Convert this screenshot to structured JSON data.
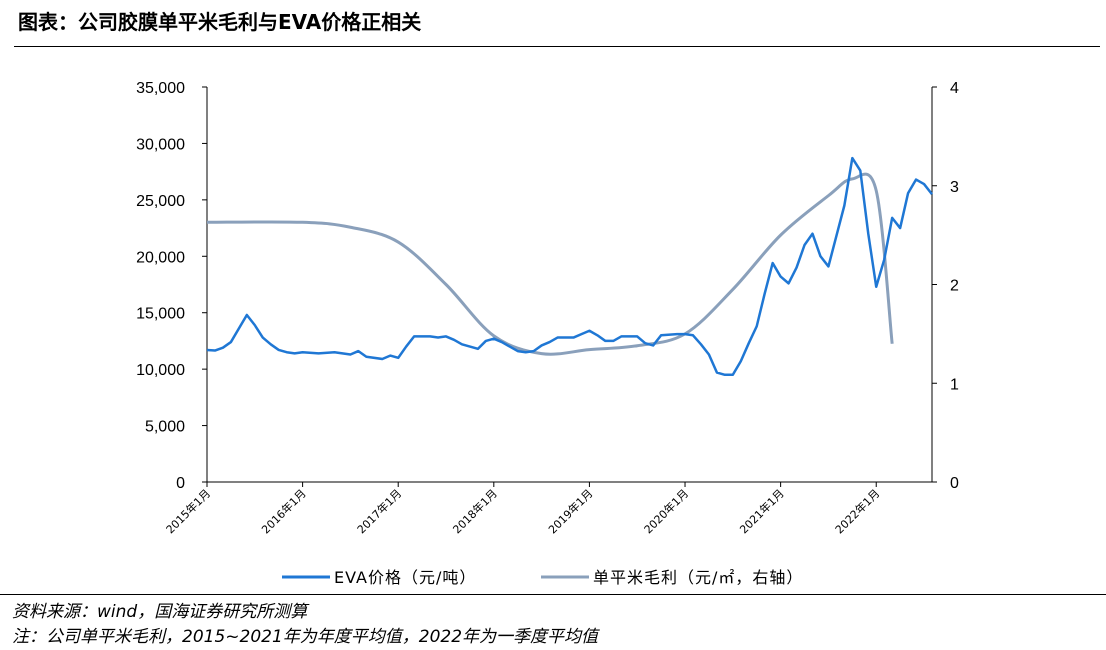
{
  "header": {
    "title": "图表：公司胶膜单平米毛利与EVA价格正相关"
  },
  "notes": {
    "source": "资料来源：wind，国海证券研究所测算",
    "note": "注：公司单平米毛利，2015~2021年为年度平均值，2022年为一季度平均值"
  },
  "colors": {
    "eva": "#1f77d4",
    "margin": "#8aa0bb",
    "axis": "#000000"
  },
  "chart_data": {
    "type": "line",
    "title": "",
    "x_ticks": [
      "2015年1月",
      "2016年1月",
      "2017年1月",
      "2018年1月",
      "2019年1月",
      "2020年1月",
      "2021年1月",
      "2022年1月"
    ],
    "x_range": [
      "2015-01",
      "2022-08"
    ],
    "left_axis": {
      "ylim": [
        0,
        35000
      ],
      "ticks": [
        "0",
        "5,000",
        "10,000",
        "15,000",
        "20,000",
        "25,000",
        "30,000",
        "35,000"
      ]
    },
    "right_axis": {
      "ylim": [
        0,
        4
      ],
      "ticks": [
        "0",
        "1",
        "2",
        "3",
        "4"
      ]
    },
    "grid": false,
    "legend_position": "bottom",
    "series": [
      {
        "name": "EVA价格（元/吨）",
        "axis": "left",
        "points": [
          [
            "2015-01",
            11700
          ],
          [
            "2015-02",
            11650
          ],
          [
            "2015-03",
            11900
          ],
          [
            "2015-04",
            12400
          ],
          [
            "2015-05",
            13600
          ],
          [
            "2015-06",
            14800
          ],
          [
            "2015-07",
            13900
          ],
          [
            "2015-08",
            12800
          ],
          [
            "2015-09",
            12200
          ],
          [
            "2015-10",
            11700
          ],
          [
            "2015-11",
            11500
          ],
          [
            "2015-12",
            11400
          ],
          [
            "2016-01",
            11500
          ],
          [
            "2016-03",
            11400
          ],
          [
            "2016-05",
            11500
          ],
          [
            "2016-07",
            11300
          ],
          [
            "2016-08",
            11600
          ],
          [
            "2016-09",
            11100
          ],
          [
            "2016-11",
            10900
          ],
          [
            "2016-12",
            11200
          ],
          [
            "2017-01",
            11000
          ],
          [
            "2017-02",
            12000
          ],
          [
            "2017-03",
            12900
          ],
          [
            "2017-05",
            12900
          ],
          [
            "2017-06",
            12800
          ],
          [
            "2017-07",
            12900
          ],
          [
            "2017-08",
            12600
          ],
          [
            "2017-09",
            12200
          ],
          [
            "2017-10",
            12000
          ],
          [
            "2017-11",
            11800
          ],
          [
            "2017-12",
            12500
          ],
          [
            "2018-01",
            12700
          ],
          [
            "2018-02",
            12400
          ],
          [
            "2018-03",
            12000
          ],
          [
            "2018-04",
            11600
          ],
          [
            "2018-05",
            11500
          ],
          [
            "2018-06",
            11600
          ],
          [
            "2018-07",
            12100
          ],
          [
            "2018-08",
            12400
          ],
          [
            "2018-09",
            12800
          ],
          [
            "2018-11",
            12800
          ],
          [
            "2018-12",
            13100
          ],
          [
            "2019-01",
            13400
          ],
          [
            "2019-02",
            13000
          ],
          [
            "2019-03",
            12500
          ],
          [
            "2019-04",
            12500
          ],
          [
            "2019-05",
            12900
          ],
          [
            "2019-07",
            12900
          ],
          [
            "2019-08",
            12300
          ],
          [
            "2019-09",
            12100
          ],
          [
            "2019-10",
            13000
          ],
          [
            "2019-12",
            13100
          ],
          [
            "2020-01",
            13100
          ],
          [
            "2020-02",
            13000
          ],
          [
            "2020-03",
            12200
          ],
          [
            "2020-04",
            11300
          ],
          [
            "2020-05",
            9700
          ],
          [
            "2020-06",
            9500
          ],
          [
            "2020-07",
            9500
          ],
          [
            "2020-08",
            10700
          ],
          [
            "2020-09",
            12300
          ],
          [
            "2020-10",
            13800
          ],
          [
            "2020-11",
            16700
          ],
          [
            "2020-12",
            19400
          ],
          [
            "2021-01",
            18200
          ],
          [
            "2021-02",
            17600
          ],
          [
            "2021-03",
            19000
          ],
          [
            "2021-04",
            21000
          ],
          [
            "2021-05",
            22000
          ],
          [
            "2021-06",
            20000
          ],
          [
            "2021-07",
            19100
          ],
          [
            "2021-08",
            21800
          ],
          [
            "2021-09",
            24500
          ],
          [
            "2021-10",
            28700
          ],
          [
            "2021-11",
            27600
          ],
          [
            "2021-12",
            22000
          ],
          [
            "2022-01",
            17300
          ],
          [
            "2022-02",
            19700
          ],
          [
            "2022-03",
            23400
          ],
          [
            "2022-04",
            22500
          ],
          [
            "2022-05",
            25600
          ],
          [
            "2022-06",
            26800
          ],
          [
            "2022-07",
            26400
          ],
          [
            "2022-08",
            25500
          ]
        ]
      },
      {
        "name": "单平米毛利（元/㎡，右轴）",
        "axis": "right",
        "points": [
          [
            "2015-01",
            2.63
          ],
          [
            "2016-01",
            2.63
          ],
          [
            "2016-07",
            2.58
          ],
          [
            "2017-01",
            2.43
          ],
          [
            "2017-07",
            2.0
          ],
          [
            "2018-01",
            1.48
          ],
          [
            "2018-07",
            1.3
          ],
          [
            "2019-01",
            1.34
          ],
          [
            "2019-07",
            1.38
          ],
          [
            "2020-01",
            1.5
          ],
          [
            "2020-07",
            1.95
          ],
          [
            "2021-01",
            2.5
          ],
          [
            "2021-07",
            2.9
          ],
          [
            "2021-10",
            3.07
          ],
          [
            "2022-01",
            2.95
          ],
          [
            "2022-03",
            1.4
          ]
        ]
      }
    ]
  }
}
